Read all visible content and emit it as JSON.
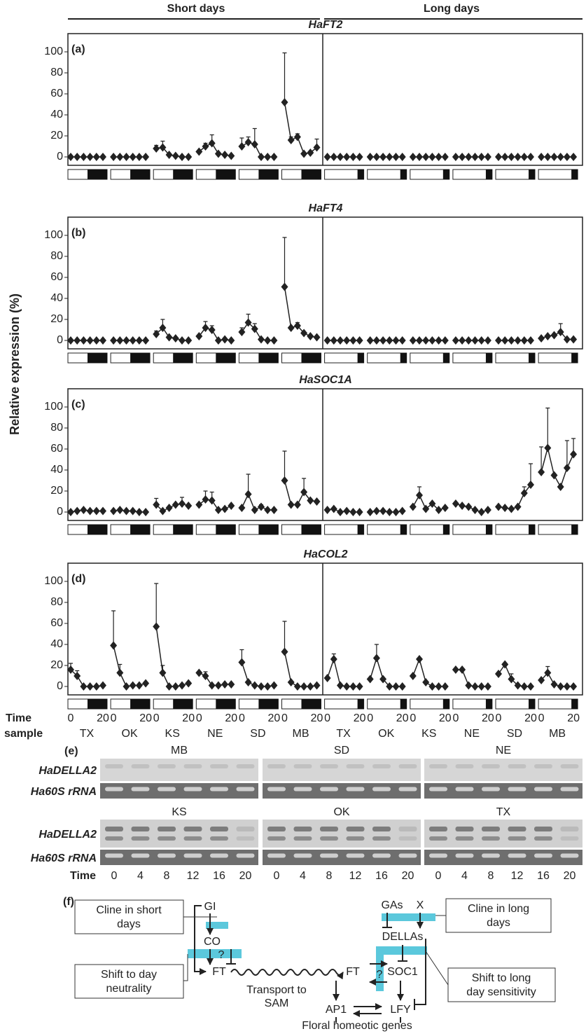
{
  "header": {
    "short_days": "Short days",
    "long_days": "Long days"
  },
  "y_axis_label": "Relative expression (%)",
  "x_axis": {
    "time_label": "Time",
    "sample_label": "sample",
    "x": [
      0,
      4,
      8,
      12,
      16,
      20
    ],
    "xticks": [
      0,
      20
    ],
    "samples": [
      "TX",
      "OK",
      "KS",
      "NE",
      "SD",
      "MB",
      "TX",
      "OK",
      "KS",
      "NE",
      "SD",
      "MB"
    ]
  },
  "chart_data": [
    {
      "type": "line",
      "title": "HaFT2",
      "panel": "(a)",
      "color": "#222222",
      "ylim": [
        0,
        100
      ],
      "yticks": [
        0,
        20,
        40,
        60,
        80,
        100
      ],
      "groups": [
        [
          0,
          0,
          0,
          0,
          0,
          0
        ],
        [
          0,
          0,
          0,
          0,
          0,
          0
        ],
        [
          8,
          9,
          2,
          1,
          0,
          0
        ],
        [
          5,
          10,
          13,
          3,
          2,
          1
        ],
        [
          10,
          14,
          12,
          0,
          0,
          0
        ],
        [
          52,
          16,
          19,
          3,
          4,
          9
        ],
        [
          0,
          0,
          0,
          0,
          0,
          0
        ],
        [
          0,
          0,
          0,
          0,
          0,
          0
        ],
        [
          0,
          0,
          0,
          0,
          0,
          0
        ],
        [
          0,
          0,
          0,
          0,
          0,
          0
        ],
        [
          0,
          0,
          0,
          0,
          0,
          0
        ],
        [
          0,
          0,
          0,
          0,
          0,
          0
        ]
      ],
      "errors": [
        [
          0,
          0,
          0,
          0,
          0,
          0
        ],
        [
          0,
          0,
          0,
          0,
          0,
          0
        ],
        [
          3,
          6,
          0,
          0,
          0,
          0
        ],
        [
          0,
          3,
          8,
          0,
          0,
          0
        ],
        [
          8,
          5,
          15,
          0,
          0,
          0
        ],
        [
          47,
          3,
          3,
          0,
          0,
          8
        ],
        [
          0,
          0,
          0,
          0,
          0,
          0
        ],
        [
          0,
          0,
          0,
          0,
          0,
          0
        ],
        [
          0,
          0,
          0,
          0,
          0,
          0
        ],
        [
          0,
          0,
          0,
          0,
          0,
          0
        ],
        [
          0,
          0,
          0,
          0,
          0,
          0
        ],
        [
          0,
          0,
          0,
          0,
          0,
          0
        ]
      ]
    },
    {
      "type": "line",
      "title": "HaFT4",
      "panel": "(b)",
      "color": "#222222",
      "ylim": [
        0,
        100
      ],
      "yticks": [
        0,
        20,
        40,
        60,
        80,
        100
      ],
      "groups": [
        [
          0,
          0,
          0,
          0,
          0,
          0
        ],
        [
          0,
          0,
          0,
          0,
          0,
          0
        ],
        [
          6,
          12,
          3,
          2,
          0,
          0
        ],
        [
          4,
          12,
          10,
          0,
          1,
          0
        ],
        [
          8,
          17,
          11,
          1,
          0,
          0
        ],
        [
          51,
          12,
          14,
          7,
          4,
          3
        ],
        [
          0,
          0,
          0,
          0,
          0,
          0
        ],
        [
          0,
          0,
          0,
          0,
          0,
          0
        ],
        [
          0,
          0,
          0,
          0,
          0,
          0
        ],
        [
          0,
          0,
          0,
          0,
          0,
          0
        ],
        [
          0,
          0,
          0,
          0,
          0,
          0
        ],
        [
          2,
          4,
          5,
          8,
          1,
          1
        ]
      ],
      "errors": [
        [
          0,
          0,
          0,
          0,
          0,
          0
        ],
        [
          0,
          0,
          0,
          0,
          0,
          0
        ],
        [
          3,
          8,
          0,
          0,
          0,
          0
        ],
        [
          0,
          6,
          4,
          0,
          0,
          0
        ],
        [
          4,
          8,
          5,
          0,
          0,
          0
        ],
        [
          47,
          0,
          3,
          0,
          0,
          0
        ],
        [
          0,
          0,
          0,
          0,
          0,
          0
        ],
        [
          0,
          0,
          0,
          0,
          0,
          0
        ],
        [
          0,
          0,
          0,
          0,
          0,
          0
        ],
        [
          0,
          0,
          0,
          0,
          0,
          0
        ],
        [
          0,
          0,
          0,
          0,
          0,
          0
        ],
        [
          0,
          0,
          0,
          8,
          0,
          0
        ]
      ]
    },
    {
      "type": "line",
      "title": "HaSOC1A",
      "panel": "(c)",
      "color": "#222222",
      "ylim": [
        0,
        100
      ],
      "yticks": [
        0,
        20,
        40,
        60,
        80,
        100
      ],
      "groups": [
        [
          0,
          1,
          2,
          1,
          1,
          1
        ],
        [
          1,
          2,
          1,
          1,
          0,
          0
        ],
        [
          7,
          1,
          4,
          7,
          8,
          6
        ],
        [
          7,
          12,
          11,
          2,
          3,
          6
        ],
        [
          4,
          17,
          2,
          5,
          2,
          2
        ],
        [
          30,
          7,
          7,
          19,
          11,
          10
        ],
        [
          2,
          3,
          0,
          1,
          0,
          0
        ],
        [
          0,
          1,
          1,
          0,
          0,
          1
        ],
        [
          5,
          16,
          3,
          8,
          2,
          4
        ],
        [
          8,
          6,
          5,
          2,
          0,
          2
        ],
        [
          5,
          4,
          3,
          5,
          18,
          26
        ],
        [
          38,
          61,
          35,
          24,
          42,
          55
        ]
      ],
      "errors": [
        [
          0,
          0,
          0,
          0,
          0,
          0
        ],
        [
          0,
          0,
          0,
          0,
          0,
          0
        ],
        [
          6,
          0,
          0,
          0,
          6,
          0
        ],
        [
          0,
          8,
          8,
          0,
          0,
          0
        ],
        [
          0,
          19,
          0,
          2,
          0,
          0
        ],
        [
          28,
          0,
          0,
          13,
          0,
          0
        ],
        [
          0,
          0,
          0,
          0,
          0,
          0
        ],
        [
          0,
          0,
          0,
          0,
          0,
          0
        ],
        [
          0,
          8,
          0,
          0,
          0,
          0
        ],
        [
          0,
          0,
          0,
          0,
          0,
          0
        ],
        [
          0,
          0,
          0,
          0,
          6,
          20
        ],
        [
          24,
          38,
          0,
          0,
          26,
          15
        ]
      ]
    },
    {
      "type": "line",
      "title": "HaCOL2",
      "panel": "(d)",
      "color": "#222222",
      "ylim": [
        0,
        100
      ],
      "yticks": [
        0,
        20,
        40,
        60,
        80,
        100
      ],
      "groups": [
        [
          16,
          10,
          0,
          0,
          0,
          1
        ],
        [
          39,
          13,
          0,
          1,
          1,
          3
        ],
        [
          57,
          13,
          0,
          0,
          1,
          3
        ],
        [
          13,
          10,
          1,
          1,
          2,
          2
        ],
        [
          23,
          4,
          1,
          0,
          0,
          1
        ],
        [
          33,
          4,
          0,
          0,
          0,
          1
        ],
        [
          8,
          26,
          1,
          0,
          0,
          0
        ],
        [
          7,
          27,
          7,
          0,
          0,
          0
        ],
        [
          10,
          26,
          4,
          0,
          0,
          0
        ],
        [
          16,
          16,
          1,
          0,
          0,
          0
        ],
        [
          12,
          21,
          7,
          1,
          0,
          0
        ],
        [
          6,
          13,
          2,
          0,
          0,
          0
        ]
      ],
      "errors": [
        [
          6,
          5,
          0,
          0,
          0,
          0
        ],
        [
          33,
          8,
          0,
          0,
          0,
          0
        ],
        [
          41,
          7,
          0,
          0,
          0,
          0
        ],
        [
          0,
          4,
          0,
          0,
          0,
          0
        ],
        [
          12,
          0,
          0,
          0,
          0,
          0
        ],
        [
          29,
          0,
          0,
          0,
          0,
          0
        ],
        [
          0,
          5,
          0,
          0,
          0,
          0
        ],
        [
          0,
          13,
          0,
          0,
          0,
          0
        ],
        [
          0,
          0,
          0,
          0,
          0,
          0
        ],
        [
          0,
          0,
          0,
          0,
          0,
          0
        ],
        [
          0,
          0,
          5,
          0,
          0,
          0
        ],
        [
          0,
          6,
          0,
          0,
          0,
          0
        ]
      ]
    }
  ],
  "gel": {
    "panel": "(e)",
    "row_labels": [
      "HaDELLA2",
      "Ha60S rRNA"
    ],
    "top_sites": [
      "MB",
      "SD",
      "NE"
    ],
    "bottom_sites": [
      "KS",
      "OK",
      "TX"
    ],
    "time_label": "Time",
    "times": [
      0,
      4,
      8,
      12,
      16,
      20
    ]
  },
  "diagram": {
    "panel": "(f)",
    "gi": "GI",
    "co": "CO",
    "q1": "?",
    "ft1": "FT",
    "transport": [
      "Transport to",
      "SAM"
    ],
    "gas": "GAs",
    "x": "X",
    "dellas": "DELLAs",
    "ft2": "FT",
    "q2": "?",
    "soc1": "SOC1",
    "ap1": "AP1",
    "lfy": "LFY",
    "floral": "Floral homeotic genes",
    "box_short": [
      "Cline in short",
      "days"
    ],
    "box_neutral": [
      "Shift to day",
      "neutrality"
    ],
    "box_long": [
      "Cline in long",
      "days"
    ],
    "box_sens": [
      "Shift to long",
      "day sensitivity"
    ]
  }
}
